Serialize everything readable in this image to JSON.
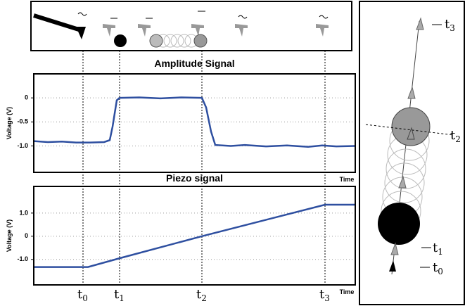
{
  "chart_data": [
    {
      "type": "line",
      "title": "Amplitude Signal",
      "y_label": "Voltage (V)",
      "x_label": "Time",
      "xlim": [
        0,
        457
      ],
      "ylim": [
        -1.55,
        0.5
      ],
      "yticks": [
        0,
        -0.5,
        {
          "value": -1,
          "label": "-1.0"
        }
      ],
      "grid": true,
      "x": [
        0,
        20,
        40,
        60,
        80,
        100,
        108,
        112,
        118,
        122,
        150,
        180,
        210,
        239,
        245,
        252,
        258,
        280,
        300,
        330,
        360,
        390,
        410,
        430,
        457
      ],
      "series": [
        {
          "color": "#2e4fa0",
          "values": [
            -0.9,
            -0.92,
            -0.91,
            -0.93,
            -0.93,
            -0.92,
            -0.88,
            -0.6,
            -0.05,
            0,
            0.01,
            -0.01,
            0.01,
            0,
            -0.2,
            -0.7,
            -0.98,
            -1.0,
            -0.98,
            -1.01,
            -0.99,
            -1.02,
            -0.99,
            -1.01,
            -1.0
          ]
        }
      ]
    },
    {
      "type": "line",
      "title": "Piezo signal",
      "y_label": "Voltage (V)",
      "x_label": "Time",
      "xlim": [
        0,
        457
      ],
      "ylim": [
        -2.1,
        2.15
      ],
      "yticks": [
        {
          "value": 1,
          "label": "1.0"
        },
        0,
        {
          "value": -1,
          "label": "-1.0"
        }
      ],
      "grid": true,
      "x": [
        0,
        77,
        122,
        239,
        414,
        457
      ],
      "series": [
        {
          "color": "#2e4fa0",
          "values": [
            -1.33,
            -1.33,
            -0.95,
            0.0,
            1.36,
            1.36
          ]
        }
      ]
    }
  ],
  "markers": [
    {
      "symbol": "t",
      "index": "0",
      "x": 70
    },
    {
      "symbol": "t",
      "index": "1",
      "x": 122
    },
    {
      "symbol": "t",
      "index": "2",
      "x": 239
    },
    {
      "symbol": "t",
      "index": "3",
      "x": 414
    }
  ],
  "diagram": {
    "labels": [
      {
        "symbol": "t",
        "index": "3"
      },
      {
        "symbol": "t",
        "index": "2"
      },
      {
        "symbol": "t",
        "index": "1"
      },
      {
        "symbol": "t",
        "index": "0"
      }
    ]
  }
}
